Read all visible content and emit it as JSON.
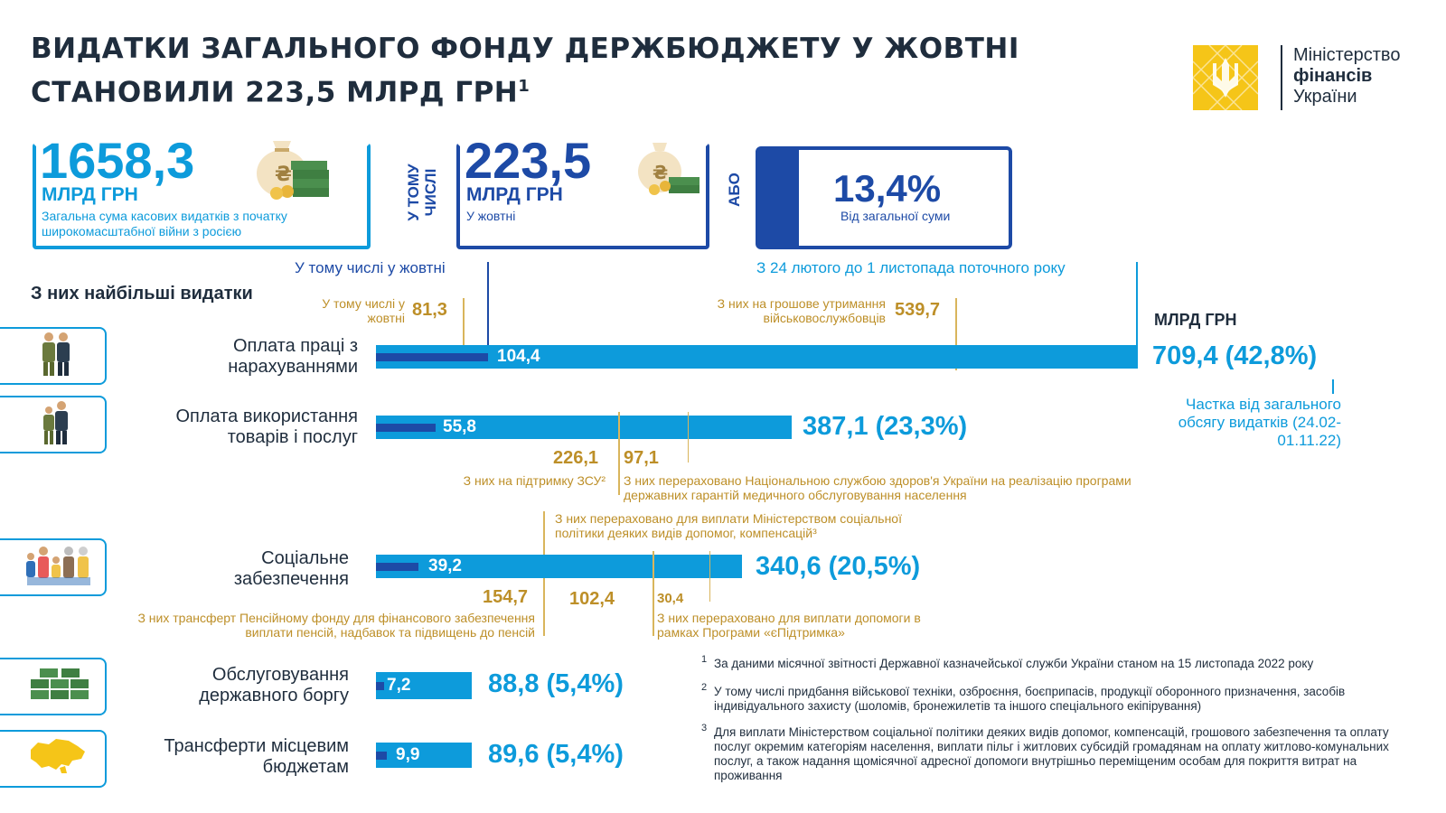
{
  "header": {
    "title_line1": "ВИДАТКИ ЗАГАЛЬНОГО ФОНДУ ДЕРЖБЮДЖЕТУ У ЖОВТНІ",
    "title_line2": "СТАНОВИЛИ 223,5 МЛРД ГРН",
    "title_sup": "1"
  },
  "logo": {
    "line1": "Міністерство",
    "line2": "фінансів",
    "line3": "України",
    "color": "#f5c518"
  },
  "stats": {
    "total": {
      "value": "1658,3",
      "unit": "МЛРД ГРН",
      "desc": "Загальна сума касових видатків з початку широкомасштабної війни з росією"
    },
    "connector1": "У ТОМУ ЧИСЛІ",
    "october": {
      "value": "223,5",
      "unit": "МЛРД ГРН",
      "desc": "У жовтні"
    },
    "connector2": "АБО",
    "share": {
      "value": "13,4%",
      "desc": "Від загальної суми"
    }
  },
  "legend": {
    "october_label": "У тому числі у жовтні",
    "period_label": "З 24 лютого до 1 листопада поточного року",
    "unit": "МЛРД ГРН",
    "share_note": "Частка від загального обсягу видатків (24.02-01.11.22)"
  },
  "section_title": "З них найбільші видатки",
  "categories": [
    {
      "label": "Оплата праці з нарахуваннями",
      "total_label": "709,4 (42,8%)",
      "oct_label": "104,4"
    },
    {
      "label": "Оплата використання товарів і послуг",
      "total_label": "387,1 (23,3%)",
      "oct_label": "55,8"
    },
    {
      "label": "Соціальне забезпечення",
      "total_label": "340,6 (20,5%)",
      "oct_label": "39,2"
    },
    {
      "label": "Обслуговування державного боргу",
      "total_label": "88,8 (5,4%)",
      "oct_label": "7,2"
    },
    {
      "label": "Трансферти місцевим бюджетам",
      "total_label": "89,6 (5,4%)",
      "oct_label": "9,9"
    }
  ],
  "annotations": {
    "wages_oct": {
      "num": "81,3",
      "text": "У тому числі у жовтні"
    },
    "wages_mil": {
      "num": "539,7",
      "text": "З них на грошове утримання військовослужбовців"
    },
    "goods_zsu": {
      "num": "226,1",
      "text": "З них на підтримку ЗСУ²"
    },
    "goods_nszu": {
      "num": "97,1",
      "text": "З них перераховано Національною службою здоров'я України на реалізацію програми державних гарантій медичного обслуговування населення"
    },
    "social_minsoc": {
      "text": "З них перераховано для виплати Міністерством соціальної політики деяких видів допомог, компенсацій³"
    },
    "social_pension": {
      "num": "154,7",
      "text": "З них трансферт Пенсійному фонду для фінансового забезпечення виплати пенсій, надбавок та підвищень до пенсій"
    },
    "social_minsoc_num": "102,4",
    "social_epidtrymka": {
      "num": "30,4",
      "text": "З них перераховано для виплати допомоги в рамках Програми «єПідтримка»"
    }
  },
  "footnotes": [
    {
      "num": "1",
      "text": "За даними місячної звітності Державної казначейської служби України станом на 15 листопада 2022 року"
    },
    {
      "num": "2",
      "text": "У тому числі придбання військової техніки, озброєння, боєприпасів, продукції оборонного призначення, засобів індивідуального захисту (шоломів, бронежилетів та іншого спеціального екіпірування)"
    },
    {
      "num": "3",
      "text": "Для виплати Міністерством соціальної політики деяких видів допомог, компенсацій, грошового забезпечення та оплату послуг окремим категоріям населення, виплати пільг і житлових субсидій громадянам на оплату житлово-комунальних послуг, а також надання щомісячної адресної допомоги внутрішньо переміщеним особам для покриття витрат на проживання"
    }
  ],
  "colors": {
    "cyan": "#0d9bdb",
    "dark_blue": "#1d4aa6",
    "gold": "#bd8f28",
    "text": "#1f2d3d"
  },
  "chart_data": {
    "type": "bar",
    "orientation": "horizontal",
    "categories": [
      "Оплата праці з нарахуваннями",
      "Оплата використання товарів і послуг",
      "Соціальне забезпечення",
      "Обслуговування державного боргу",
      "Трансферти місцевим бюджетам"
    ],
    "series": [
      {
        "values": [
          709.4,
          387.1,
          340.6,
          88.8,
          89.6
        ],
        "shares_pct": [
          42.8,
          23.3,
          20.5,
          5.4,
          5.4
        ]
      },
      {
        "values": [
          104.4,
          55.8,
          39.2,
          7.2,
          9.9
        ]
      }
    ],
    "unit": "МЛРД ГРН",
    "xlim": [
      0,
      709.4
    ],
    "grid": false
  }
}
